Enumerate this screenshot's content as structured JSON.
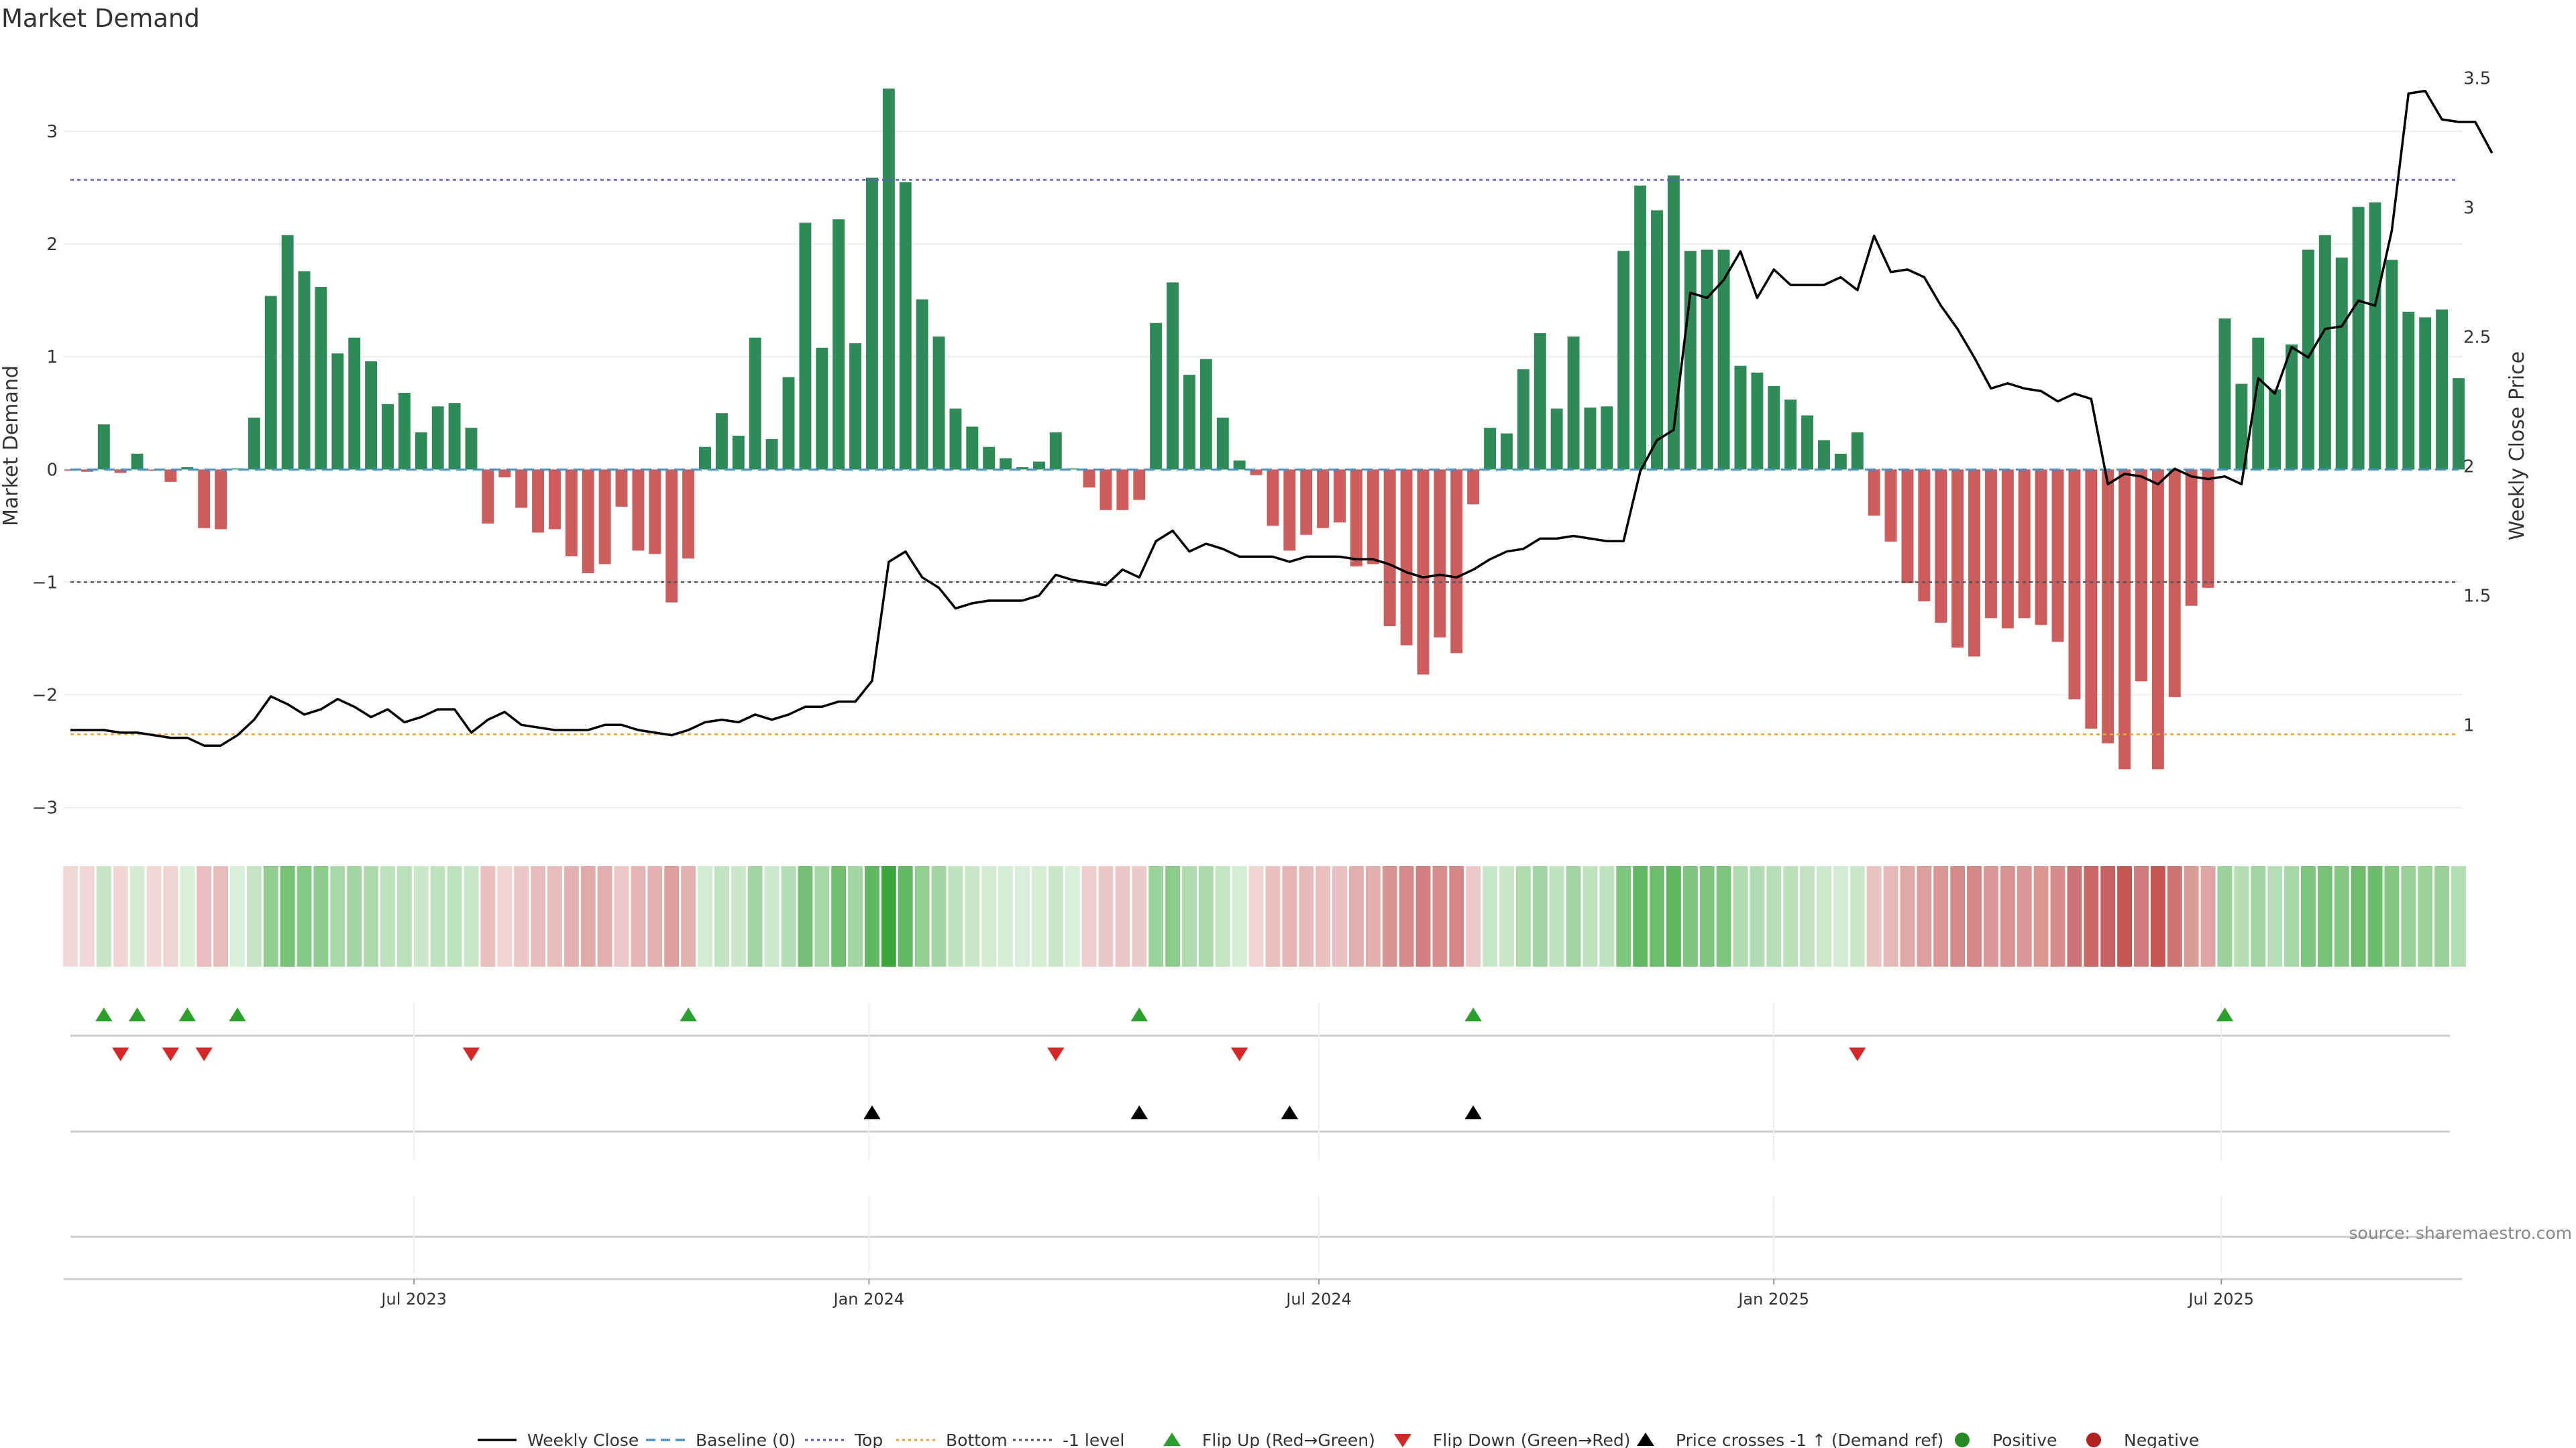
{
  "chart_data": {
    "type": "bar",
    "title": "Market Demand",
    "ylabel_left": "Market Demand",
    "ylabel_right": "Weekly Close Price",
    "source": "source: sharemaestro.com",
    "left_axis": {
      "ylim": [
        -3.3,
        3.75
      ],
      "ticks": [
        3,
        2,
        1,
        0,
        -1,
        -2,
        -3
      ],
      "tick_labels": [
        "3",
        "2",
        "1",
        "0",
        "−1",
        "−2",
        "−3"
      ]
    },
    "right_axis": {
      "ylim": [
        0.55,
        3.62
      ],
      "ticks": [
        3.5,
        3,
        2.5,
        2,
        1.5,
        1
      ],
      "tick_labels": [
        "3.5",
        "3",
        "2.5",
        "2",
        "1.5",
        "1"
      ]
    },
    "x": {
      "start": "2023-02-12",
      "end": "2025-10-05",
      "tick_labels": [
        "Jul 2023",
        "Jan 2024",
        "Jul 2024",
        "Jan 2025",
        "Jul 2025"
      ],
      "tick_dates": [
        "2023-07-01",
        "2024-01-01",
        "2024-07-01",
        "2025-01-01",
        "2025-07-01"
      ]
    },
    "reference_lines": [
      {
        "name": "Top",
        "value": 2.57,
        "color": "#5b57c8"
      },
      {
        "name": "-1 level",
        "value": -1,
        "color": "#555555"
      },
      {
        "name": "Bottom",
        "value": -2.35,
        "color": "#e8a33a"
      }
    ],
    "demand": [
      -0.01,
      -0.02,
      0.4,
      -0.03,
      0.14,
      -0.01,
      -0.11,
      0.02,
      -0.52,
      -0.53,
      0.01,
      0.46,
      1.54,
      2.08,
      1.76,
      1.62,
      1.03,
      1.17,
      0.96,
      0.58,
      0.68,
      0.33,
      0.56,
      0.59,
      0.37,
      -0.48,
      -0.07,
      -0.34,
      -0.56,
      -0.53,
      -0.77,
      -0.92,
      -0.84,
      -0.33,
      -0.72,
      -0.75,
      -1.18,
      -0.79,
      0.2,
      0.5,
      0.3,
      1.17,
      0.27,
      0.82,
      2.19,
      1.08,
      2.22,
      1.12,
      2.59,
      3.38,
      2.55,
      1.51,
      1.18,
      0.54,
      0.38,
      0.2,
      0.1,
      0.02,
      0.07,
      0.33,
      0.01,
      -0.16,
      -0.36,
      -0.36,
      -0.27,
      1.3,
      1.66,
      0.84,
      0.98,
      0.46,
      0.08,
      -0.05,
      -0.5,
      -0.72,
      -0.58,
      -0.52,
      -0.47,
      -0.86,
      -0.84,
      -1.39,
      -1.56,
      -1.82,
      -1.49,
      -1.63,
      -0.31,
      0.37,
      0.32,
      0.89,
      1.21,
      0.54,
      1.18,
      0.55,
      0.56,
      1.94,
      2.52,
      2.3,
      2.61,
      1.94,
      1.95,
      1.95,
      0.92,
      0.86,
      0.74,
      0.62,
      0.48,
      0.26,
      0.14,
      0.33,
      -0.41,
      -0.64,
      -1.01,
      -1.17,
      -1.36,
      -1.58,
      -1.66,
      -1.32,
      -1.41,
      -1.32,
      -1.38,
      -1.53,
      -2.04,
      -2.3,
      -2.43,
      -2.66,
      -1.88,
      -2.66,
      -2.02,
      -1.21,
      -1.05,
      1.34,
      0.76,
      1.17,
      0.71,
      1.11,
      1.95,
      2.08,
      1.88,
      2.33,
      2.37,
      1.86,
      1.4,
      1.35,
      1.42,
      0.81
    ],
    "price": [
      0.98,
      0.98,
      0.98,
      0.97,
      0.97,
      0.96,
      0.95,
      0.95,
      0.92,
      0.92,
      0.96,
      1.02,
      1.11,
      1.08,
      1.04,
      1.06,
      1.1,
      1.07,
      1.03,
      1.06,
      1.01,
      1.03,
      1.06,
      1.06,
      0.97,
      1.02,
      1.05,
      1.0,
      0.99,
      0.98,
      0.98,
      0.98,
      1.0,
      1.0,
      0.98,
      0.97,
      0.96,
      0.98,
      1.01,
      1.02,
      1.01,
      1.04,
      1.02,
      1.04,
      1.07,
      1.07,
      1.09,
      1.09,
      1.17,
      1.63,
      1.67,
      1.57,
      1.53,
      1.45,
      1.47,
      1.48,
      1.48,
      1.48,
      1.5,
      1.58,
      1.56,
      1.55,
      1.54,
      1.6,
      1.57,
      1.71,
      1.75,
      1.67,
      1.7,
      1.68,
      1.65,
      1.65,
      1.65,
      1.63,
      1.65,
      1.65,
      1.65,
      1.64,
      1.64,
      1.62,
      1.59,
      1.57,
      1.58,
      1.57,
      1.6,
      1.64,
      1.67,
      1.68,
      1.72,
      1.72,
      1.73,
      1.72,
      1.71,
      1.71,
      1.98,
      2.1,
      2.14,
      2.67,
      2.65,
      2.72,
      2.83,
      2.65,
      2.76,
      2.7,
      2.7,
      2.7,
      2.73,
      2.68,
      2.89,
      2.75,
      2.76,
      2.73,
      2.62,
      2.53,
      2.42,
      2.3,
      2.32,
      2.3,
      2.29,
      2.25,
      2.28,
      2.26,
      1.93,
      1.97,
      1.96,
      1.93,
      1.99,
      1.96,
      1.95,
      1.96,
      1.93,
      2.34,
      2.28,
      2.46,
      2.42,
      2.53,
      2.54,
      2.64,
      2.62,
      2.91,
      3.44,
      3.45,
      3.34,
      3.33,
      3.33,
      3.21
    ],
    "flip_up_weeks": [
      2,
      4,
      7,
      10,
      37,
      64,
      84,
      129
    ],
    "flip_down_weeks": [
      3,
      6,
      8,
      24,
      59,
      70,
      107
    ],
    "price_cross_weeks": [
      48,
      64,
      73,
      84
    ],
    "colors": {
      "positive": "#2e8b57",
      "negative": "#cd5c5c",
      "price_line": "#000000",
      "baseline": "#4a90c8",
      "flip_up": "#2ca02c",
      "flip_down": "#d62728",
      "cross": "#000000",
      "positive_marker": "#228b22",
      "negative_marker": "#b22222"
    },
    "legend": [
      {
        "label": "Weekly Close",
        "kind": "line",
        "color": "#000000"
      },
      {
        "label": "Baseline (0)",
        "kind": "dash",
        "color": "#4a90c8"
      },
      {
        "label": "Top",
        "kind": "dot",
        "color": "#5b57c8"
      },
      {
        "label": "Bottom",
        "kind": "dot",
        "color": "#e8a33a"
      },
      {
        "label": "-1 level",
        "kind": "dot",
        "color": "#555555"
      },
      {
        "label": "Flip Up (Red→Green)",
        "kind": "tri-up",
        "color": "#2ca02c"
      },
      {
        "label": "Flip Down (Green→Red)",
        "kind": "tri-down",
        "color": "#d62728"
      },
      {
        "label": "Price crosses -1 ↑ (Demand ref)",
        "kind": "tri-up",
        "color": "#000000"
      },
      {
        "label": "Positive",
        "kind": "circle",
        "color": "#228b22"
      },
      {
        "label": "Negative",
        "kind": "circle",
        "color": "#b22222"
      }
    ]
  }
}
